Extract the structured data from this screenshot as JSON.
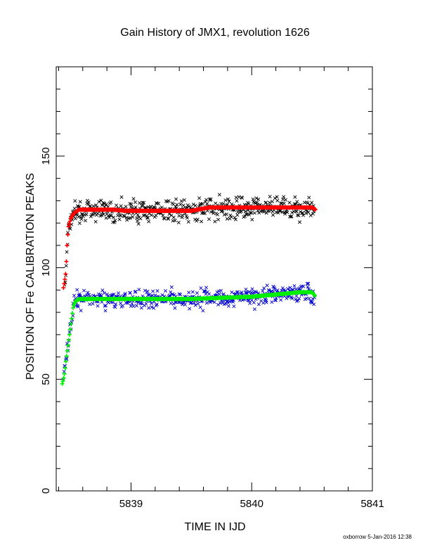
{
  "chart_data": {
    "type": "scatter",
    "title": "Gain History of JMX1, revolution 1626",
    "xlabel": "TIME IN IJD",
    "ylabel": "POSITION OF Fe CALIBRATION PEAKS",
    "xlim": [
      5838.38,
      5841.0
    ],
    "ylim": [
      0,
      190
    ],
    "x_ticks": [
      "5839",
      "5840",
      "5841"
    ],
    "y_ticks": [
      "0",
      "50",
      "100",
      "150"
    ],
    "grid": false,
    "footer": "oxborrow  5-Jan-2016 12:38",
    "colors": {
      "upper_raw": "#000000",
      "upper_fit": "#ff0000",
      "lower_raw": "#0000cc",
      "lower_fit": "#00ee00"
    },
    "series": [
      {
        "role": "upper_fit",
        "marker": "+",
        "x": [
          5838.44,
          5838.45,
          5838.46,
          5838.47,
          5838.48,
          5838.49,
          5838.5,
          5838.52,
          5838.54,
          5838.57,
          5838.6,
          5838.65,
          5838.75,
          5838.85,
          5838.95,
          5839.05,
          5839.15,
          5839.25,
          5839.35,
          5839.45,
          5839.5,
          5839.55,
          5839.6,
          5839.65,
          5839.7,
          5839.8,
          5839.9,
          5840.0,
          5840.1,
          5840.2,
          5840.3,
          5840.4,
          5840.5,
          5840.53
        ],
        "y": [
          91,
          94,
          98,
          110,
          118,
          120,
          122,
          124,
          125,
          126,
          126,
          126,
          126,
          126,
          125.5,
          125.5,
          125.5,
          125.5,
          125.5,
          125.5,
          125.5,
          126,
          126.5,
          127,
          127,
          127,
          127,
          127,
          127,
          127,
          127,
          127,
          127,
          126
        ]
      },
      {
        "role": "lower_fit",
        "marker": "+",
        "x": [
          5838.43,
          5838.44,
          5838.45,
          5838.46,
          5838.47,
          5838.48,
          5838.49,
          5838.5,
          5838.51,
          5838.52,
          5838.53,
          5838.55,
          5838.58,
          5838.62,
          5838.7,
          5838.8,
          5838.9,
          5839.0,
          5839.1,
          5839.2,
          5839.3,
          5839.4,
          5839.5,
          5839.6,
          5839.7,
          5839.8,
          5839.9,
          5840.0,
          5840.1,
          5840.2,
          5840.3,
          5840.4,
          5840.5,
          5840.53
        ],
        "y": [
          48,
          50,
          53,
          58,
          62,
          66,
          70,
          74,
          78,
          82,
          84,
          85.5,
          86,
          86,
          86,
          86,
          86,
          86,
          86,
          86,
          86,
          86,
          86,
          86.2,
          86.4,
          86.6,
          86.8,
          87,
          87.5,
          88,
          88.5,
          89,
          89,
          87
        ]
      }
    ],
    "scatter_bands": [
      {
        "role": "upper_raw",
        "marker": "x",
        "x_start": 5838.45,
        "x_end": 5840.52,
        "follows": "upper_fit",
        "spread": 5
      },
      {
        "role": "lower_raw",
        "marker": "x",
        "x_start": 5838.44,
        "x_end": 5840.52,
        "follows": "lower_fit",
        "spread": 4
      }
    ]
  }
}
